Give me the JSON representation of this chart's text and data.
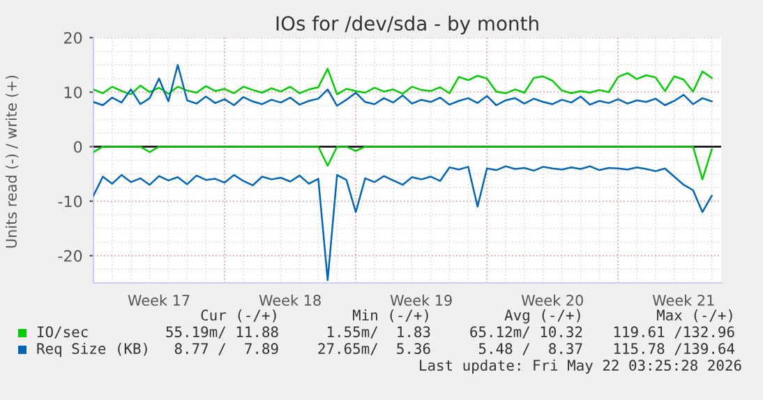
{
  "chart_data": {
    "type": "line",
    "title": "IOs for /dev/sda - by month",
    "ylabel": "Units read (-) / write (+)",
    "categories": [
      null,
      null,
      null,
      null,
      null,
      null,
      null,
      "Week 17",
      null,
      null,
      null,
      null,
      null,
      null,
      null,
      null,
      null,
      null,
      null,
      null,
      null,
      "Week 18",
      null,
      null,
      null,
      null,
      null,
      null,
      null,
      null,
      null,
      null,
      null,
      null,
      null,
      "Week 19",
      null,
      null,
      null,
      null,
      null,
      null,
      null,
      null,
      null,
      null,
      null,
      null,
      null,
      "Week 20",
      null,
      null,
      null,
      null,
      null,
      null,
      null,
      null,
      null,
      null,
      null,
      null,
      null,
      "Week 21",
      null,
      null,
      null
    ],
    "series": [
      {
        "name": "IO/sec",
        "color": "#00cc00",
        "values": [
          10.5,
          9.8,
          11,
          10.2,
          9.6,
          11.2,
          10,
          10.8,
          9.7,
          11,
          10.3,
          9.9,
          11.1,
          10.2,
          10.6,
          9.8,
          11,
          10.4,
          9.9,
          10.7,
          10.1,
          11,
          9.8,
          10.5,
          10.9,
          14.3,
          9.6,
          10.6,
          10.2,
          9.9,
          10.8,
          10.1,
          10.5,
          9.7,
          11,
          10.4,
          10.2,
          10.9,
          9.8,
          12.8,
          12.2,
          13,
          12.5,
          10.1,
          9.8,
          10.5,
          9.9,
          12.6,
          12.9,
          12.1,
          10.3,
          9.8,
          10.2,
          9.9,
          10.4,
          10,
          12.8,
          13.5,
          12.4,
          13.1,
          12.7,
          10.2,
          12.9,
          12.3,
          10.1,
          13.8,
          12.6
        ]
      },
      {
        "color": "#00cc00",
        "values": [
          -1,
          0,
          0,
          0,
          0,
          0,
          -1,
          0,
          0,
          0,
          0,
          0,
          0,
          0,
          0,
          0,
          0,
          0,
          0,
          0,
          0,
          0,
          0,
          0,
          0,
          -3.5,
          0,
          0,
          -0.8,
          0,
          0,
          0,
          0,
          0,
          0,
          0,
          0,
          0,
          0,
          0,
          0,
          0,
          0,
          0,
          0,
          0,
          0,
          0,
          0,
          0,
          0,
          0,
          0,
          0,
          0,
          0,
          0,
          0,
          0,
          0,
          0,
          0,
          0,
          0,
          0,
          -6,
          -0.5
        ]
      },
      {
        "name": "Req Size (KB)",
        "color": "#0066b3",
        "values": [
          8.2,
          7.6,
          9,
          8.1,
          10.5,
          7.8,
          8.9,
          12.5,
          8.3,
          15,
          8.5,
          7.9,
          9.2,
          8,
          8.7,
          7.6,
          9.1,
          8.3,
          7.8,
          8.6,
          8.1,
          9,
          7.7,
          8.4,
          8.8,
          10.5,
          7.5,
          8.6,
          9.9,
          8.2,
          7.8,
          8.9,
          8.1,
          9.4,
          7.9,
          8.6,
          8.2,
          9,
          7.7,
          8.4,
          8.9,
          8,
          9.3,
          7.6,
          8.5,
          8.9,
          7.9,
          8.8,
          8.2,
          7.8,
          8.6,
          8.1,
          9.2,
          7.7,
          8.4,
          8,
          8.7,
          7.9,
          8.5,
          8.2,
          8.8,
          7.6,
          8.4,
          9.5,
          7.8,
          8.9,
          8.3
        ]
      },
      {
        "color": "#0066b3",
        "values": [
          -9,
          -5.5,
          -6.8,
          -5.2,
          -6.5,
          -5.8,
          -7,
          -5.4,
          -6.2,
          -5.6,
          -6.9,
          -5.3,
          -6.1,
          -5.9,
          -6.6,
          -5.2,
          -6.3,
          -7.1,
          -5.5,
          -6,
          -5.7,
          -6.4,
          -5.3,
          -6.8,
          -5.9,
          -24.5,
          -5.2,
          -6.1,
          -12,
          -5.8,
          -6.5,
          -5.4,
          -6.2,
          -7,
          -5.6,
          -6,
          -5.5,
          -6.3,
          -3.8,
          -4.2,
          -3.7,
          -11,
          -4,
          -4.3,
          -3.6,
          -4.1,
          -3.9,
          -4.4,
          -3.7,
          -4,
          -4.2,
          -3.8,
          -4.1,
          -3.6,
          -4.3,
          -3.9,
          -4,
          -4.2,
          -3.8,
          -4.1,
          -4.5,
          -4,
          -5.5,
          -7,
          -8,
          -12,
          -9
        ]
      }
    ],
    "ylim": [
      -25,
      20
    ],
    "yticks": [
      -20,
      -10,
      0,
      10,
      20
    ],
    "ref_lines": [
      {
        "axis": "y",
        "value": 0,
        "color": "#000000",
        "line_style": "solid"
      }
    ],
    "grid": true,
    "legend": "bottom left",
    "line_style": "solid",
    "marker": "none",
    "annotations": [
      "Cur (-/+)",
      "Min (-/+)",
      "Avg (-/+)",
      "Max (-/+)",
      "55.19m/ 11.88",
      "1.55m/  1.83",
      "65.12m/ 10.32",
      "119.61 /132.96",
      "8.77 /  7.89",
      "27.65m/  5.36",
      "5.48 /  8.37",
      "115.78 /139.64",
      "Last update: Fri May 22 03:25:28 2026"
    ]
  }
}
